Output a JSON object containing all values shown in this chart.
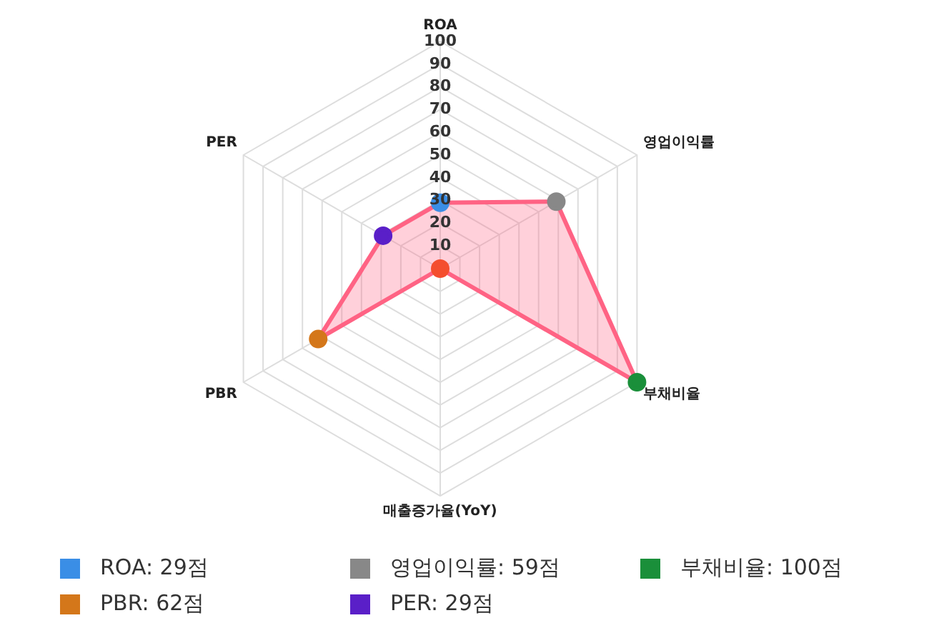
{
  "chart_data": {
    "type": "radar",
    "categories": [
      "ROA",
      "영업이익률",
      "부채비율",
      "매출증가율(YoY)",
      "PBR",
      "PER"
    ],
    "series": [
      {
        "color": "#ff6384",
        "values": [
          29,
          59,
          100,
          0,
          62,
          29
        ],
        "colors": [
          "#3a8ee6",
          "#888888",
          "#1a8f3a",
          "#f44e2e",
          "#d4771a",
          "#5a1fc8"
        ]
      }
    ],
    "ylim": [
      0,
      100
    ],
    "yticks": [
      10,
      20,
      30,
      40,
      50,
      60,
      70,
      80,
      90,
      100
    ],
    "grid": true,
    "marker": "circle",
    "annotations": [
      "ROA: 29점",
      "영업이익률: 59점",
      "부채비율: 100점",
      "PBR: 62점",
      "PER: 29점"
    ]
  }
}
